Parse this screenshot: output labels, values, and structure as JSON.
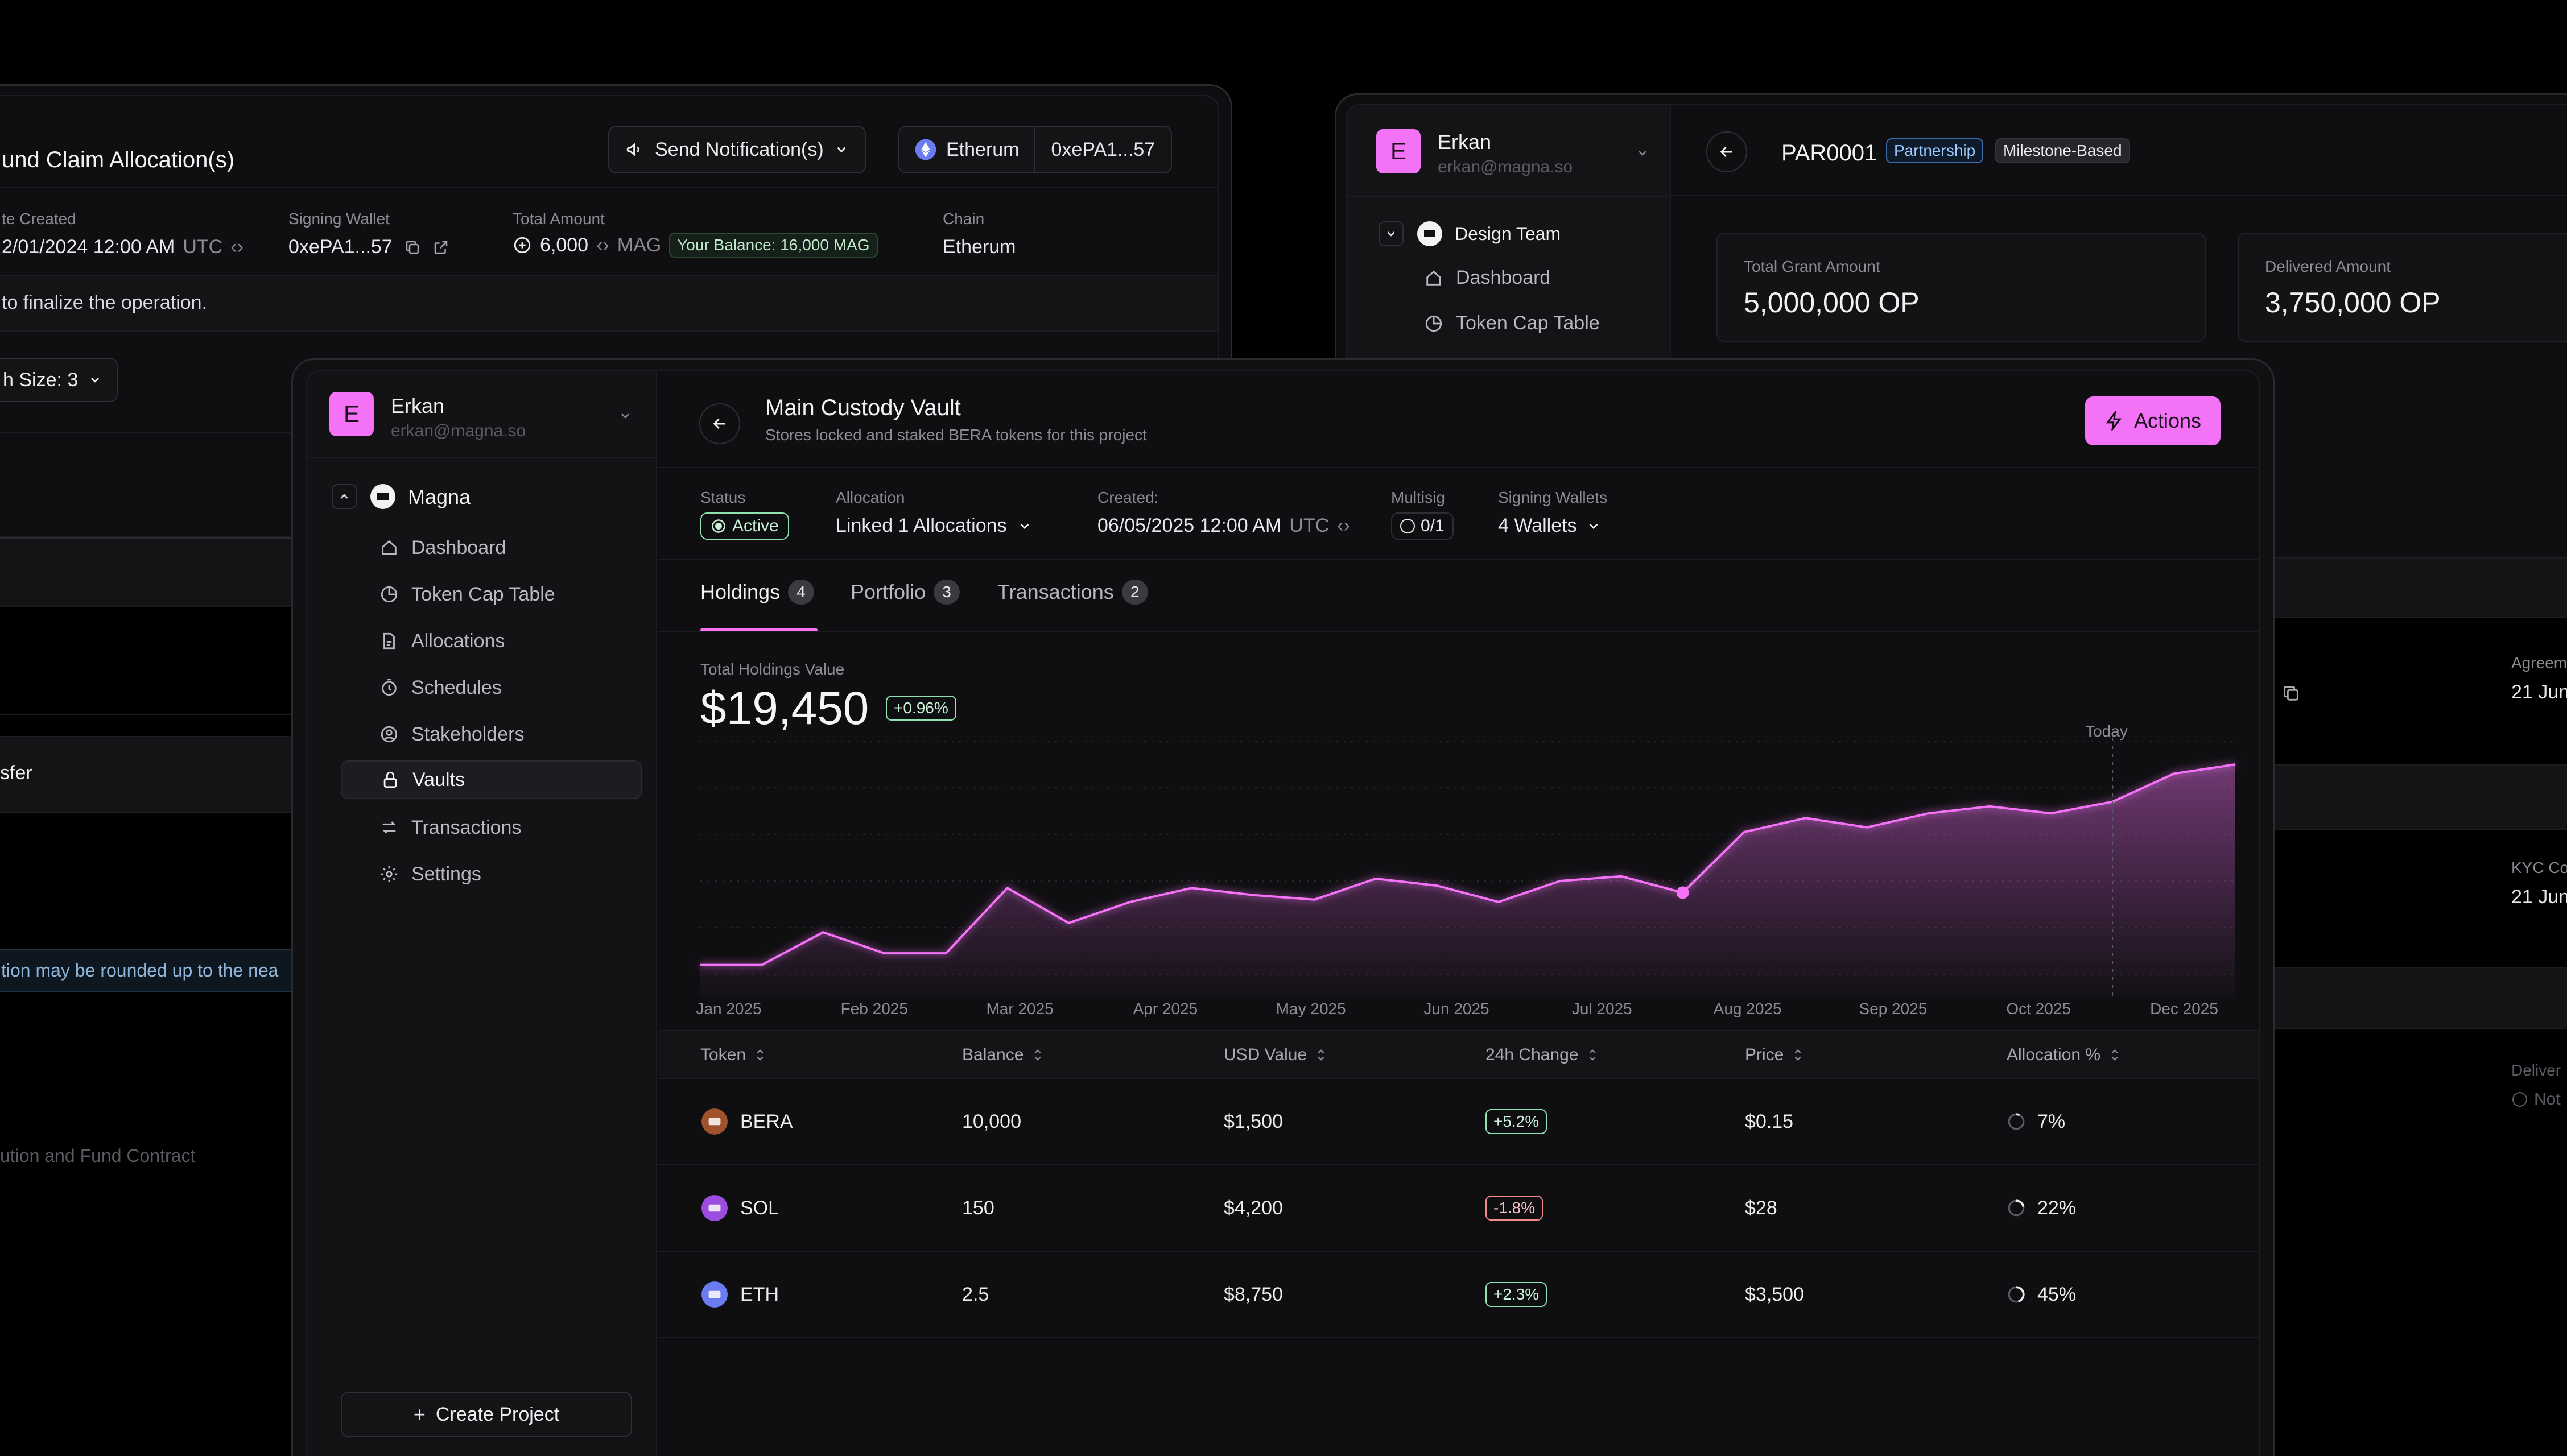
{
  "left_window": {
    "title": "und Claim Allocation(s)",
    "send_button": "Send Notification(s)",
    "chain_chip": "Etherum",
    "wallet_chip": "0xePA1...57",
    "fields": [
      {
        "label": "te Created",
        "value": "2/01/2024 12:00 AM",
        "suffix": "UTC"
      },
      {
        "label": "Signing Wallet",
        "value": "0xePA1...57"
      },
      {
        "label": "Total Amount",
        "value": "6,000",
        "suffix": "MAG",
        "badge": "Your Balance: 16,000 MAG"
      },
      {
        "label": "Chain",
        "value": "Etherum"
      }
    ],
    "notice": "to finalize the operation.",
    "batch_size": "h Size: 3",
    "transfer_text": "sfer",
    "rounding_note": "tion may be rounded up to the nea",
    "contract_text": "ution and Fund Contract"
  },
  "right_window": {
    "user_name": "Erkan",
    "user_email": "erkan@magna.so",
    "avatar_letter": "E",
    "team_name": "Design Team",
    "nav": [
      "Dashboard",
      "Token Cap Table"
    ],
    "id": "PAR0001",
    "tag_partnership": "Partnership",
    "tag_milestone": "Milestone-Based",
    "total_grant_label": "Total Grant Amount",
    "total_grant_value": "5,000,000 OP",
    "delivered_label": "Delivered Amount",
    "delivered_value": "3,750,000 OP",
    "agreement_label": "Agreem",
    "agreement_value": "21 Jun",
    "kyc_label": "KYC Co",
    "kyc_value": "21 Jun",
    "deliver_label": "Deliver",
    "deliver_value": "Not"
  },
  "main_window": {
    "user_name": "Erkan",
    "user_email": "erkan@magna.so",
    "avatar_letter": "E",
    "project_name": "Magna",
    "nav": [
      {
        "label": "Dashboard",
        "icon": "home-icon"
      },
      {
        "label": "Token Cap Table",
        "icon": "pie-icon"
      },
      {
        "label": "Allocations",
        "icon": "document-icon"
      },
      {
        "label": "Schedules",
        "icon": "timer-icon"
      },
      {
        "label": "Stakeholders",
        "icon": "user-circle-icon"
      },
      {
        "label": "Vaults",
        "icon": "lock-icon"
      },
      {
        "label": "Transactions",
        "icon": "arrows-icon"
      },
      {
        "label": "Settings",
        "icon": "gear-icon"
      }
    ],
    "active_nav": "Vaults",
    "create_project": "Create Project",
    "vault_title": "Main Custody Vault",
    "vault_subtitle": "Stores locked and staked BERA tokens for this project",
    "actions_button": "Actions",
    "meta": {
      "status_label": "Status",
      "status_value": "Active",
      "allocation_label": "Allocation",
      "allocation_value": "Linked 1 Allocations",
      "created_label": "Created:",
      "created_value": "06/05/2025 12:00 AM",
      "created_tz": "UTC",
      "multisig_label": "Multisig",
      "multisig_value": "0/1",
      "signing_label": "Signing Wallets",
      "signing_value": "4 Wallets"
    },
    "tabs": [
      {
        "label": "Holdings",
        "count": "4"
      },
      {
        "label": "Portfolio",
        "count": "3"
      },
      {
        "label": "Transactions",
        "count": "2"
      }
    ],
    "holdings_label": "Total Holdings Value",
    "holdings_value": "$19,450",
    "holdings_change": "+0.96%",
    "today_label": "Today",
    "table": {
      "headers": [
        "Token",
        "Balance",
        "USD Value",
        "24h Change",
        "Price",
        "Allocation %"
      ],
      "rows": [
        {
          "token": "BERA",
          "balance": "10,000",
          "usd": "$1,500",
          "change": "+5.2%",
          "positive": true,
          "price": "$0.15",
          "alloc": "7%",
          "alloc_pct": 7,
          "color": "#a0522d"
        },
        {
          "token": "SOL",
          "balance": "150",
          "usd": "$4,200",
          "change": "-1.8%",
          "positive": false,
          "price": "$28",
          "alloc": "22%",
          "alloc_pct": 22,
          "color": "#9b4de0"
        },
        {
          "token": "ETH",
          "balance": "2.5",
          "usd": "$8,750",
          "change": "+2.3%",
          "positive": true,
          "price": "$3,500",
          "alloc": "45%",
          "alloc_pct": 45,
          "color": "#6b7cf0"
        }
      ]
    },
    "colors": {
      "accent": "#f472f6",
      "positive": "#8fe3b0",
      "negative": "#f28b8b"
    }
  },
  "chart_data": {
    "type": "area",
    "x_ticks": [
      "Jan 2025",
      "Feb 2025",
      "Mar 2025",
      "Apr 2025",
      "May 2025",
      "Jun 2025",
      "Jul 2025",
      "Aug 2025",
      "Sep 2025",
      "Oct 2025",
      "Dec 2025"
    ],
    "values": [
      4,
      4,
      18,
      9,
      9,
      37,
      22,
      31,
      37,
      34,
      32,
      41,
      38,
      31,
      40,
      42,
      35,
      61,
      67,
      63,
      69,
      72,
      69,
      74,
      86,
      90
    ],
    "highlight_index": 16,
    "today_index": 23,
    "ylim": [
      0,
      100
    ]
  }
}
